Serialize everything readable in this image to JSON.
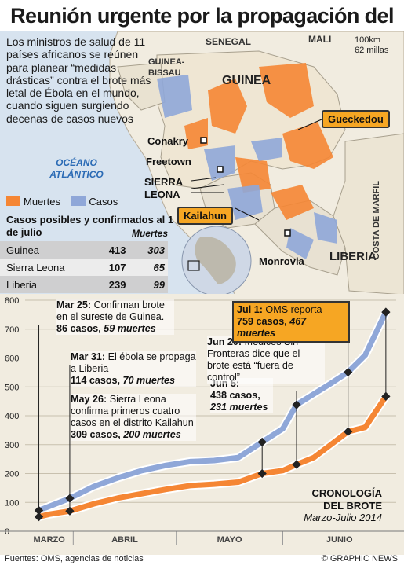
{
  "title": "Reunión urgente por la propagación del Ébola",
  "intro": "Los ministros de salud de 11 países africanos se reúnen para planear “medidas drásticas” contra el brote más letal de Ébola en el mundo, cuando siguen surgiendo decenas de casos nuevos",
  "map": {
    "countries": [
      "SENEGAL",
      "MALI",
      "GUINEA-BISSAU",
      "GUINEA",
      "SIERRA LEONA",
      "LIBERIA",
      "COSTA DE MARFIL"
    ],
    "ocean": "OCÉANO ATLÁNTICO",
    "cities": [
      "Conakry",
      "Freetown",
      "Monrovia"
    ],
    "callouts": [
      "Gueckedou",
      "Kailahun"
    ],
    "scale": [
      "100km",
      "62 millas"
    ]
  },
  "legend": {
    "deaths_label": "Muertes",
    "cases_label": "Casos",
    "deaths_color": "#f58634",
    "cases_color": "#8fa7d8"
  },
  "table": {
    "title": "Casos posibles y confirmados al 1 de julio",
    "deaths_header": "Muertes",
    "rows": [
      {
        "country": "Guinea",
        "cases": "413",
        "deaths": "303"
      },
      {
        "country": "Sierra Leona",
        "cases": "107",
        "deaths": "65"
      },
      {
        "country": "Liberia",
        "cases": "239",
        "deaths": "99"
      }
    ]
  },
  "annotations": [
    {
      "date": "Mar 25:",
      "text": "Confirman brote en el sureste de Guinea.",
      "cases": "86 casos,",
      "deaths": "59 muertes"
    },
    {
      "date": "Mar 31:",
      "text": "El ébola se propaga a Liberia",
      "cases": "114 casos,",
      "deaths": "70 muertes"
    },
    {
      "date": "May 26:",
      "text": "Sierra Leona confirma primeros cuatro casos en el distrito Kailahun",
      "cases": "309 casos,",
      "deaths": "200 muertes"
    },
    {
      "date": "Jun 5:",
      "cases": "438 casos,",
      "deaths": "231 muertes"
    },
    {
      "date": "Jun 20:",
      "text": "Médicos Sin Fronteras dice que el brote está “fuera de control”"
    },
    {
      "date": "Jul 1:",
      "text": "OMS reporta",
      "cases": "759 casos,",
      "deaths": "467 muertes"
    }
  ],
  "chart_data": {
    "type": "line",
    "title": "CRONOLOGÍA DEL BROTE",
    "subtitle": "Marzo-Julio 2014",
    "x": [
      "2014-03-22",
      "2014-03-25",
      "2014-03-31",
      "2014-04-07",
      "2014-04-14",
      "2014-04-21",
      "2014-04-28",
      "2014-05-05",
      "2014-05-12",
      "2014-05-19",
      "2014-05-26",
      "2014-06-01",
      "2014-06-05",
      "2014-06-10",
      "2014-06-15",
      "2014-06-20",
      "2014-06-25",
      "2014-07-01"
    ],
    "series": [
      {
        "name": "Casos",
        "color": "#8fa7d8",
        "values": [
          72,
          86,
          114,
          155,
          185,
          210,
          228,
          241,
          245,
          255,
          309,
          355,
          438,
          475,
          512,
          551,
          610,
          759
        ]
      },
      {
        "name": "Muertes",
        "color": "#f58634",
        "values": [
          50,
          59,
          70,
          95,
          115,
          130,
          145,
          158,
          163,
          170,
          200,
          210,
          231,
          255,
          300,
          345,
          360,
          467
        ]
      }
    ],
    "ylim": [
      0,
      800
    ],
    "yticks": [
      0,
      100,
      200,
      300,
      400,
      500,
      600,
      700,
      800
    ],
    "months": [
      "MARZO",
      "ABRIL",
      "MAYO",
      "JUNIO"
    ],
    "grid": true
  },
  "footer": {
    "sources": "Fuentes: OMS, agencias de noticias",
    "credit": "© GRAPHIC NEWS"
  }
}
